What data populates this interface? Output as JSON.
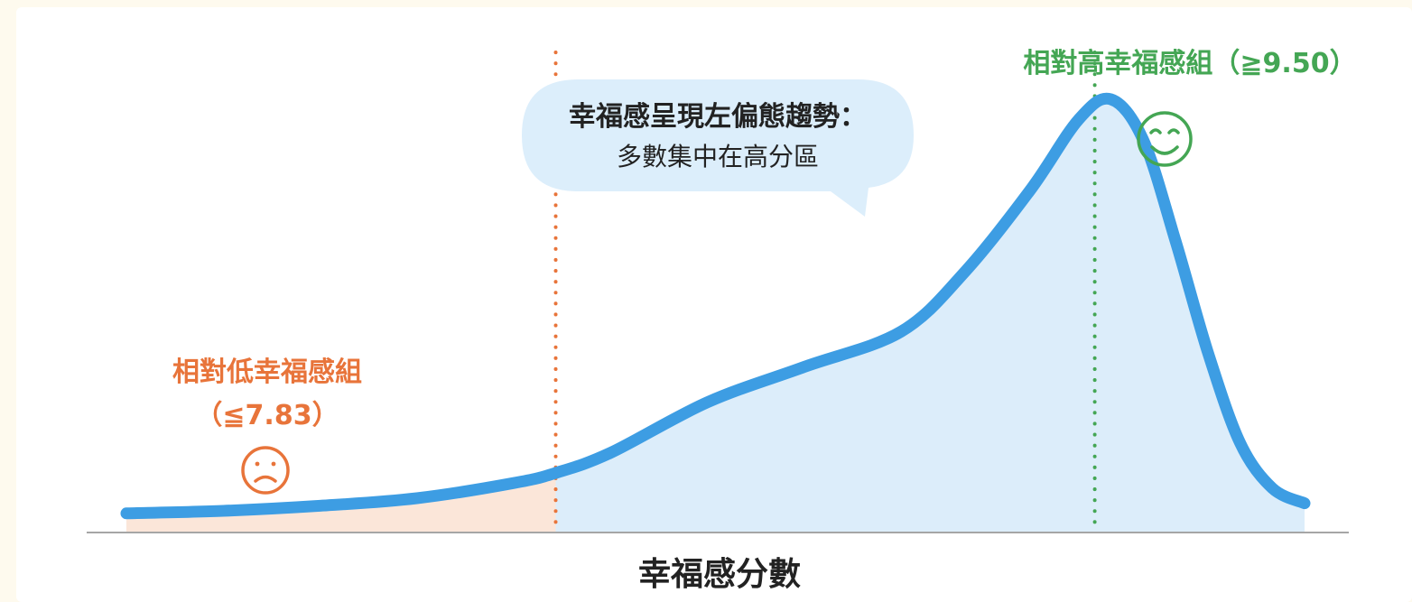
{
  "chart_data": {
    "type": "area",
    "xlabel": "幸福感分數",
    "ylabel": "",
    "shape": "left-skewed density curve",
    "x_range": [
      6.4,
      10.2
    ],
    "points": [
      [
        6.5,
        0.02
      ],
      [
        6.8,
        0.025
      ],
      [
        7.1,
        0.035
      ],
      [
        7.4,
        0.05
      ],
      [
        7.7,
        0.08
      ],
      [
        7.83,
        0.1
      ],
      [
        8.0,
        0.14
      ],
      [
        8.3,
        0.24
      ],
      [
        8.6,
        0.31
      ],
      [
        8.9,
        0.38
      ],
      [
        9.1,
        0.5
      ],
      [
        9.3,
        0.66
      ],
      [
        9.45,
        0.8
      ],
      [
        9.55,
        0.84
      ],
      [
        9.65,
        0.76
      ],
      [
        9.75,
        0.56
      ],
      [
        9.85,
        0.34
      ],
      [
        9.95,
        0.16
      ],
      [
        10.05,
        0.07
      ],
      [
        10.15,
        0.04
      ]
    ],
    "thresholds": [
      {
        "value": 7.83,
        "color": "#e8743a"
      },
      {
        "value": 9.5,
        "color": "#44a654"
      }
    ],
    "grid": false
  },
  "labels": {
    "low_group_title": "相對低幸福感組",
    "low_group_value": "（≦7.83）",
    "high_group_label": "相對高幸福感組（≧9.50）",
    "callout_line1": "幸福感呈現左偏態趨勢：",
    "callout_line2": "多數集中在高分區",
    "x_axis_label": "幸福感分數"
  },
  "colors": {
    "curve": "#3d9de3",
    "fill_main": "#dcedfa",
    "fill_low": "#fbe6d9",
    "low": "#e8743a",
    "high": "#44a654",
    "axis": "#a6a6a6",
    "callout_bg": "#dceefb",
    "text": "#222222"
  },
  "icons": {
    "low": "sad-face-icon",
    "high": "smiley-face-icon"
  }
}
